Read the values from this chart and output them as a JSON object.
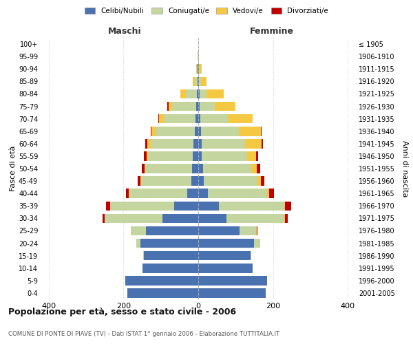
{
  "age_groups": [
    "0-4",
    "5-9",
    "10-14",
    "15-19",
    "20-24",
    "25-29",
    "30-34",
    "35-39",
    "40-44",
    "45-49",
    "50-54",
    "55-59",
    "60-64",
    "65-69",
    "70-74",
    "75-79",
    "80-84",
    "85-89",
    "90-94",
    "95-99",
    "100+"
  ],
  "birth_years": [
    "2001-2005",
    "1996-2000",
    "1991-1995",
    "1986-1990",
    "1981-1985",
    "1976-1980",
    "1971-1975",
    "1966-1970",
    "1961-1965",
    "1956-1960",
    "1951-1955",
    "1946-1950",
    "1941-1945",
    "1936-1940",
    "1931-1935",
    "1926-1930",
    "1921-1925",
    "1916-1920",
    "1911-1915",
    "1906-1910",
    "≤ 1905"
  ],
  "males": {
    "celibi": [
      190,
      195,
      150,
      145,
      155,
      140,
      95,
      65,
      30,
      18,
      16,
      14,
      13,
      10,
      8,
      5,
      3,
      2,
      1,
      0,
      0
    ],
    "coniugati": [
      0,
      0,
      0,
      2,
      10,
      40,
      155,
      170,
      155,
      135,
      125,
      120,
      115,
      105,
      85,
      65,
      30,
      8,
      3,
      1,
      0
    ],
    "vedovi": [
      0,
      0,
      0,
      0,
      0,
      0,
      1,
      1,
      1,
      2,
      3,
      5,
      8,
      10,
      12,
      10,
      15,
      5,
      2,
      0,
      0
    ],
    "divorziati": [
      0,
      0,
      0,
      0,
      0,
      1,
      5,
      10,
      8,
      8,
      7,
      6,
      5,
      3,
      2,
      2,
      0,
      0,
      0,
      0,
      0
    ]
  },
  "females": {
    "nubili": [
      180,
      185,
      145,
      140,
      150,
      110,
      75,
      55,
      25,
      14,
      12,
      10,
      10,
      8,
      5,
      4,
      3,
      2,
      1,
      0,
      0
    ],
    "coniugate": [
      0,
      0,
      0,
      2,
      15,
      45,
      155,
      175,
      160,
      145,
      130,
      120,
      115,
      100,
      75,
      40,
      20,
      5,
      3,
      1,
      0
    ],
    "vedove": [
      0,
      0,
      0,
      0,
      0,
      1,
      2,
      3,
      5,
      8,
      15,
      25,
      45,
      60,
      65,
      55,
      45,
      15,
      5,
      1,
      0
    ],
    "divorziate": [
      0,
      0,
      0,
      0,
      0,
      2,
      8,
      15,
      12,
      10,
      8,
      5,
      3,
      2,
      1,
      0,
      0,
      0,
      0,
      0,
      0
    ]
  },
  "colors": {
    "celibi": "#4A72B0",
    "coniugati": "#C5D5A0",
    "vedovi": "#F5C842",
    "divorziati": "#C00000"
  },
  "legend_labels": [
    "Celibi/Nubili",
    "Coniugati/e",
    "Vedovi/e",
    "Divorziati/e"
  ],
  "title": "Popolazione per età, sesso e stato civile - 2006",
  "subtitle": "COMUNE DI PONTE DI PIAVE (TV) - Dati ISTAT 1° gennaio 2006 - Elaborazione TUTTITALIA.IT",
  "ylabel_left": "Fasce di età",
  "ylabel_right": "Anni di nascita",
  "xlabel_left": "Maschi",
  "xlabel_right": "Femmine",
  "xlim": 420,
  "bg_color": "#FFFFFF",
  "grid_color": "#CCCCCC",
  "bar_height": 0.75
}
